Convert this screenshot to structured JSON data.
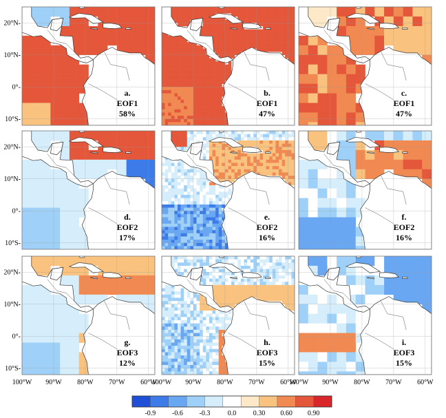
{
  "figure": {
    "lat_ticks": [
      "20°N-",
      "10°N-",
      "0°-",
      "10°S-"
    ],
    "lon_ticks": [
      "100°W",
      "90°W",
      "80°W",
      "70°W",
      "60°W"
    ]
  },
  "panels": [
    {
      "letter": "a.",
      "mode": "EOF1",
      "variance": "58%",
      "pattern": "pos_strong"
    },
    {
      "letter": "b.",
      "mode": "EOF1",
      "variance": "47%",
      "pattern": "pos_strong_fine"
    },
    {
      "letter": "c.",
      "mode": "EOF1",
      "variance": "47%",
      "pattern": "pos_mixed"
    },
    {
      "letter": "d.",
      "mode": "EOF2",
      "variance": "17%",
      "pattern": "north_pos_south_neg"
    },
    {
      "letter": "e.",
      "mode": "EOF2",
      "variance": "16%",
      "pattern": "caribbean_pos_pacific_neg"
    },
    {
      "letter": "f.",
      "mode": "EOF2",
      "variance": "16%",
      "pattern": "caribbean_pos_pacific_neg_coarse"
    },
    {
      "letter": "g.",
      "mode": "EOF3",
      "variance": "12%",
      "pattern": "gulf_pos_pacific_neg"
    },
    {
      "letter": "h.",
      "mode": "EOF3",
      "variance": "15%",
      "pattern": "central_pos_mixed"
    },
    {
      "letter": "i.",
      "mode": "EOF3",
      "variance": "15%",
      "pattern": "east_neg_coarse"
    }
  ],
  "colorbar": {
    "labels": [
      "-0.9",
      "-0.6",
      "-0.3",
      "0.0",
      "0.30",
      "0.60",
      "0.90"
    ],
    "colors": [
      "#1f4fd6",
      "#3d7be8",
      "#6aa7f2",
      "#9fd0f7",
      "#d6eefb",
      "#ffffff",
      "#fde9c8",
      "#f9c27e",
      "#f08a52",
      "#e4573a",
      "#d8262b"
    ]
  }
}
